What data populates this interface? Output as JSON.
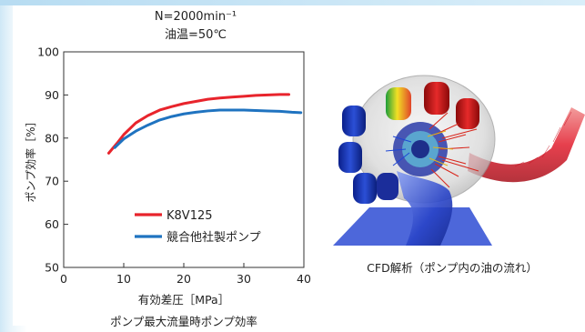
{
  "chart_data": {
    "type": "line",
    "title": "N=2000min⁻¹",
    "subtitle": "油温=50℃",
    "xlabel": "有効差圧［MPa］",
    "ylabel": "ポンプ効率［%］",
    "caption": "ポンプ最大流量時ポンプ効率",
    "xlim": [
      0,
      40
    ],
    "ylim": [
      50,
      100
    ],
    "xticks": [
      "0",
      "10",
      "20",
      "30",
      "40"
    ],
    "yticks": [
      "50",
      "60",
      "70",
      "80",
      "90",
      "100"
    ],
    "grid": false,
    "legend_position": "center-bottom",
    "series": [
      {
        "name": "K8V125",
        "color": "#e8242c",
        "x": [
          7.5,
          9,
          10,
          12,
          14,
          16,
          18,
          20,
          22,
          24,
          26,
          28,
          30,
          32,
          34,
          36,
          37.5
        ],
        "y": [
          76.5,
          79,
          80.8,
          83.5,
          85.2,
          86.5,
          87.3,
          88.0,
          88.5,
          89.0,
          89.3,
          89.5,
          89.7,
          89.9,
          90.0,
          90.1,
          90.1
        ]
      },
      {
        "name": "競合他社製ポンプ",
        "color": "#1f73c0",
        "x": [
          8.5,
          10,
          12,
          14,
          16,
          18,
          20,
          22,
          24,
          26,
          28,
          30,
          32,
          34,
          36,
          38,
          39.5
        ],
        "y": [
          77.8,
          79.8,
          81.6,
          83.0,
          84.2,
          85.0,
          85.6,
          86.0,
          86.3,
          86.5,
          86.5,
          86.5,
          86.4,
          86.3,
          86.2,
          86.0,
          85.9
        ]
      }
    ]
  },
  "cfd": {
    "caption": "CFD解析（ポンプ内の油の流れ）"
  }
}
